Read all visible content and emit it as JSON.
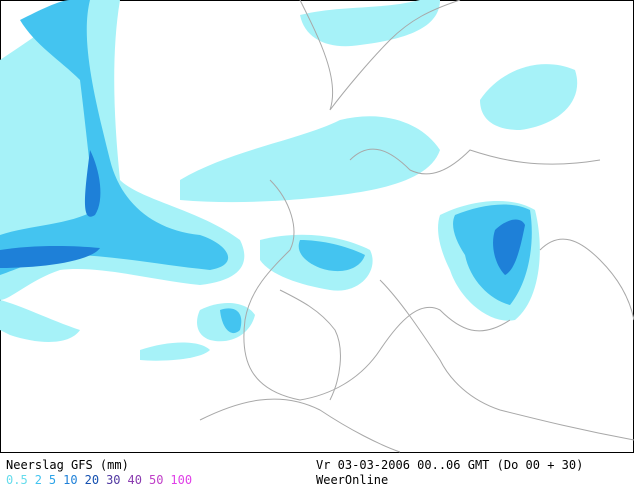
{
  "legend": {
    "title": "Neerslag GFS (mm)",
    "items": [
      {
        "label": "0.5",
        "color": "#66dcec"
      },
      {
        "label": "2",
        "color": "#44c4f0"
      },
      {
        "label": "5",
        "color": "#2ea4e8"
      },
      {
        "label": "10",
        "color": "#1e80d8"
      },
      {
        "label": "20",
        "color": "#1450b0"
      },
      {
        "label": "30",
        "color": "#5038a0"
      },
      {
        "label": "40",
        "color": "#8a3cb0"
      },
      {
        "label": "50",
        "color": "#c040c8"
      },
      {
        "label": "100",
        "color": "#e040e8"
      }
    ]
  },
  "info": {
    "valid": "Vr 03-03-2006 00..06 GMT (Do 00 + 30)",
    "source": "WeerOnline"
  }
}
